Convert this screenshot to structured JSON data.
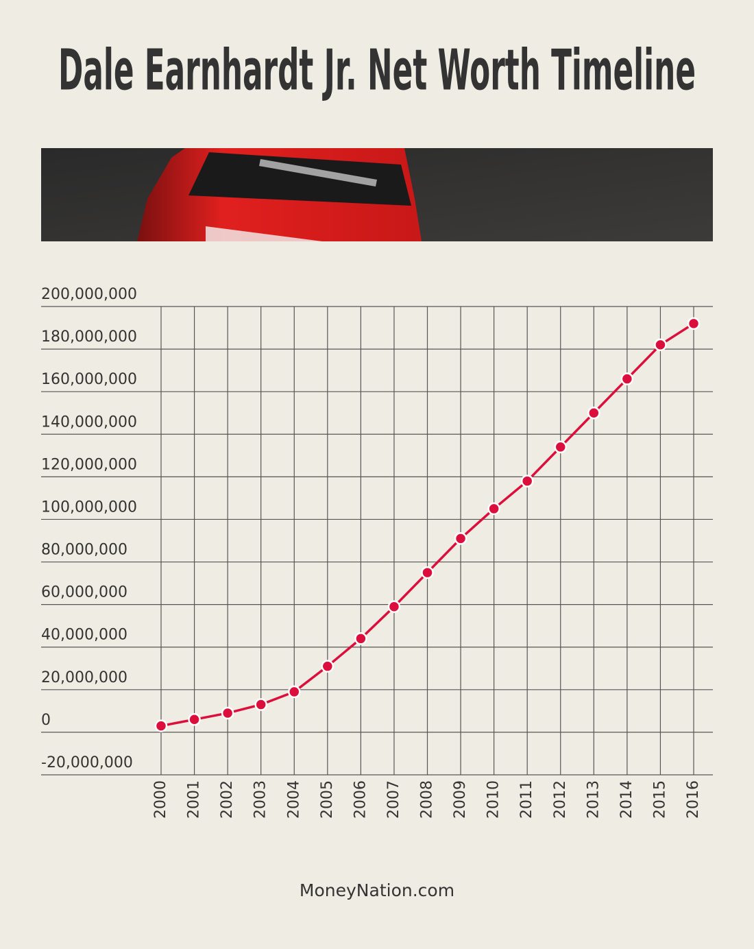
{
  "chart_data": {
    "type": "line",
    "title": "Dale Earnhardt Jr. Net Worth Timeline",
    "source": "MoneyNation.com",
    "categories": [
      "2000",
      "2001",
      "2002",
      "2003",
      "2004",
      "2005",
      "2006",
      "2007",
      "2008",
      "2009",
      "2010",
      "2011",
      "2012",
      "2013",
      "2014",
      "2015",
      "2016"
    ],
    "values": [
      3000000,
      6000000,
      9000000,
      13000000,
      19000000,
      31000000,
      44000000,
      59000000,
      75000000,
      91000000,
      105000000,
      118000000,
      134000000,
      150000000,
      166000000,
      182000000,
      192000000
    ],
    "color": "#dc0f3c",
    "ylim": [
      -20000000,
      200000000
    ],
    "yticks": [
      {
        "value": -20000000,
        "label": "-20,000,000"
      },
      0,
      {
        "value": 20000000,
        "label": "20,000,000"
      },
      {
        "value": 40000000,
        "label": "40,000,000"
      },
      {
        "value": 60000000,
        "label": "60,000,000"
      },
      {
        "value": 80000000,
        "label": "80,000,000"
      },
      {
        "value": 100000000,
        "label": "100,000,000"
      },
      {
        "value": 120000000,
        "label": "120,000,000"
      },
      {
        "value": 140000000,
        "label": "140,000,000"
      },
      {
        "value": 160000000,
        "label": "160,000,000"
      },
      {
        "value": 180000000,
        "label": "180,000,000"
      },
      {
        "value": 200000000,
        "label": "200,000,000"
      }
    ],
    "grid": true
  }
}
